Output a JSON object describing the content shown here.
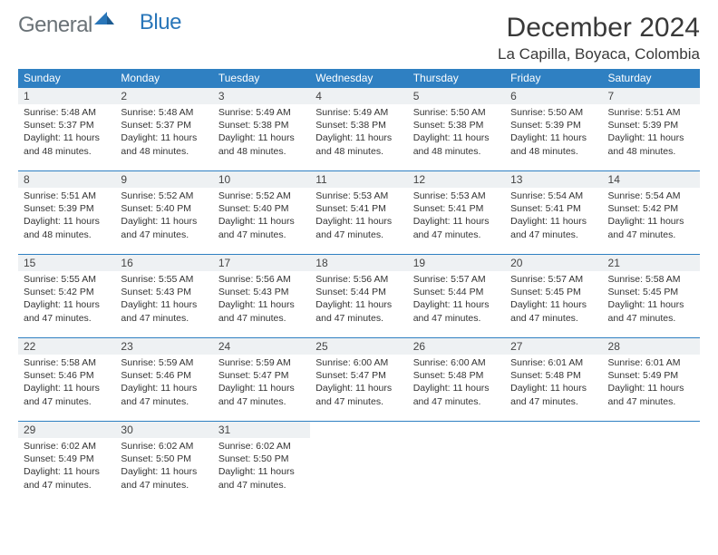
{
  "brand": {
    "part1": "General",
    "part2": "Blue"
  },
  "title": "December 2024",
  "location": "La Capilla, Boyaca, Colombia",
  "colors": {
    "header_bg": "#2f80c2",
    "header_text": "#ffffff",
    "daynum_bg": "#eef1f3",
    "row_border": "#2f80c2",
    "body_text": "#333333",
    "brand_gray": "#6a7277",
    "brand_blue": "#2976b9"
  },
  "weekdays": [
    "Sunday",
    "Monday",
    "Tuesday",
    "Wednesday",
    "Thursday",
    "Friday",
    "Saturday"
  ],
  "days": [
    {
      "n": "1",
      "sr": "5:48 AM",
      "ss": "5:37 PM",
      "dl": "11 hours and 48 minutes."
    },
    {
      "n": "2",
      "sr": "5:48 AM",
      "ss": "5:37 PM",
      "dl": "11 hours and 48 minutes."
    },
    {
      "n": "3",
      "sr": "5:49 AM",
      "ss": "5:38 PM",
      "dl": "11 hours and 48 minutes."
    },
    {
      "n": "4",
      "sr": "5:49 AM",
      "ss": "5:38 PM",
      "dl": "11 hours and 48 minutes."
    },
    {
      "n": "5",
      "sr": "5:50 AM",
      "ss": "5:38 PM",
      "dl": "11 hours and 48 minutes."
    },
    {
      "n": "6",
      "sr": "5:50 AM",
      "ss": "5:39 PM",
      "dl": "11 hours and 48 minutes."
    },
    {
      "n": "7",
      "sr": "5:51 AM",
      "ss": "5:39 PM",
      "dl": "11 hours and 48 minutes."
    },
    {
      "n": "8",
      "sr": "5:51 AM",
      "ss": "5:39 PM",
      "dl": "11 hours and 48 minutes."
    },
    {
      "n": "9",
      "sr": "5:52 AM",
      "ss": "5:40 PM",
      "dl": "11 hours and 47 minutes."
    },
    {
      "n": "10",
      "sr": "5:52 AM",
      "ss": "5:40 PM",
      "dl": "11 hours and 47 minutes."
    },
    {
      "n": "11",
      "sr": "5:53 AM",
      "ss": "5:41 PM",
      "dl": "11 hours and 47 minutes."
    },
    {
      "n": "12",
      "sr": "5:53 AM",
      "ss": "5:41 PM",
      "dl": "11 hours and 47 minutes."
    },
    {
      "n": "13",
      "sr": "5:54 AM",
      "ss": "5:41 PM",
      "dl": "11 hours and 47 minutes."
    },
    {
      "n": "14",
      "sr": "5:54 AM",
      "ss": "5:42 PM",
      "dl": "11 hours and 47 minutes."
    },
    {
      "n": "15",
      "sr": "5:55 AM",
      "ss": "5:42 PM",
      "dl": "11 hours and 47 minutes."
    },
    {
      "n": "16",
      "sr": "5:55 AM",
      "ss": "5:43 PM",
      "dl": "11 hours and 47 minutes."
    },
    {
      "n": "17",
      "sr": "5:56 AM",
      "ss": "5:43 PM",
      "dl": "11 hours and 47 minutes."
    },
    {
      "n": "18",
      "sr": "5:56 AM",
      "ss": "5:44 PM",
      "dl": "11 hours and 47 minutes."
    },
    {
      "n": "19",
      "sr": "5:57 AM",
      "ss": "5:44 PM",
      "dl": "11 hours and 47 minutes."
    },
    {
      "n": "20",
      "sr": "5:57 AM",
      "ss": "5:45 PM",
      "dl": "11 hours and 47 minutes."
    },
    {
      "n": "21",
      "sr": "5:58 AM",
      "ss": "5:45 PM",
      "dl": "11 hours and 47 minutes."
    },
    {
      "n": "22",
      "sr": "5:58 AM",
      "ss": "5:46 PM",
      "dl": "11 hours and 47 minutes."
    },
    {
      "n": "23",
      "sr": "5:59 AM",
      "ss": "5:46 PM",
      "dl": "11 hours and 47 minutes."
    },
    {
      "n": "24",
      "sr": "5:59 AM",
      "ss": "5:47 PM",
      "dl": "11 hours and 47 minutes."
    },
    {
      "n": "25",
      "sr": "6:00 AM",
      "ss": "5:47 PM",
      "dl": "11 hours and 47 minutes."
    },
    {
      "n": "26",
      "sr": "6:00 AM",
      "ss": "5:48 PM",
      "dl": "11 hours and 47 minutes."
    },
    {
      "n": "27",
      "sr": "6:01 AM",
      "ss": "5:48 PM",
      "dl": "11 hours and 47 minutes."
    },
    {
      "n": "28",
      "sr": "6:01 AM",
      "ss": "5:49 PM",
      "dl": "11 hours and 47 minutes."
    },
    {
      "n": "29",
      "sr": "6:02 AM",
      "ss": "5:49 PM",
      "dl": "11 hours and 47 minutes."
    },
    {
      "n": "30",
      "sr": "6:02 AM",
      "ss": "5:50 PM",
      "dl": "11 hours and 47 minutes."
    },
    {
      "n": "31",
      "sr": "6:02 AM",
      "ss": "5:50 PM",
      "dl": "11 hours and 47 minutes."
    }
  ],
  "labels": {
    "sunrise": "Sunrise:",
    "sunset": "Sunset:",
    "daylight": "Daylight:"
  },
  "layout": {
    "start_offset": 0,
    "total_cells": 35
  }
}
